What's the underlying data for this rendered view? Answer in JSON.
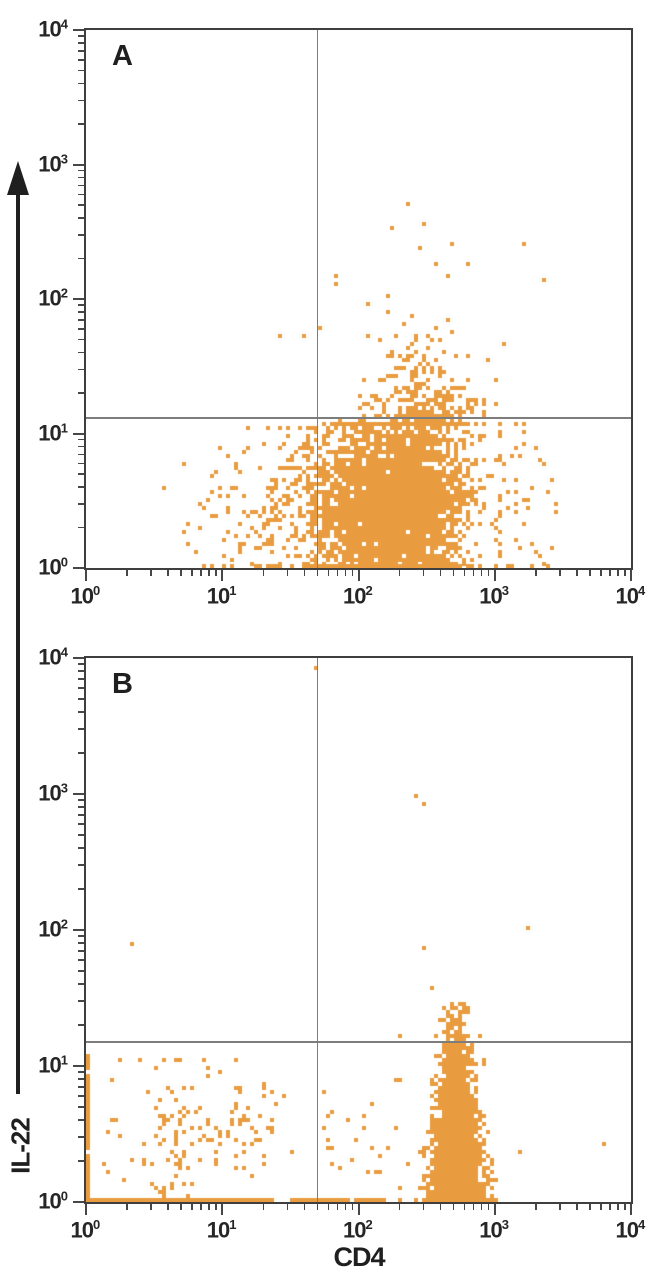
{
  "figure": {
    "background": "#ffffff"
  },
  "colors": {
    "dot": "#E99C3F",
    "frame": "#3f3f3f",
    "gate": "#7d7d7d",
    "tick": "#474747",
    "text": "#262626",
    "arrow": "#1f1f1f"
  },
  "x_axis_title": "CD4",
  "y_axis_title": "IL-22",
  "panels": [
    {
      "label": "A"
    },
    {
      "label": "B"
    }
  ],
  "chart_data": [
    {
      "type": "scatter",
      "panel": "A",
      "xlabel": "CD4",
      "ylabel": "IL-22",
      "xscale": "log",
      "yscale": "log",
      "xlim": [
        1,
        10000
      ],
      "ylim": [
        1,
        10000
      ],
      "x_tick_exponents": [
        0,
        1,
        2,
        3,
        4
      ],
      "y_tick_exponents": [
        0,
        1,
        2,
        3,
        4
      ],
      "log_minor_ticks": true,
      "grid": false,
      "quadrant_gates": {
        "x": 50,
        "y": 13
      },
      "point_color": "#E99C3F",
      "populations": [
        {
          "name": "cd4pos-il22neg-dense-blob",
          "count": 2600,
          "cd4": {
            "dist": "normal",
            "mean": 2.35,
            "sd": 0.22,
            "min": 1.705,
            "max": 3.3,
            "clip": "trunc"
          },
          "il22": {
            "dist": "normal",
            "mean": 0.52,
            "sd": 0.34,
            "min": 0,
            "max": 1.085,
            "clip": "clamp"
          }
        },
        {
          "name": "blob-left-fill",
          "count": 700,
          "cd4": {
            "dist": "uniform",
            "min": 1.705,
            "max": 2.15
          },
          "il22": {
            "dist": "normal",
            "mean": 0.5,
            "sd": 0.33,
            "min": 0,
            "max": 1.085,
            "clip": "clamp"
          }
        },
        {
          "name": "cd4pos-il22pos-scatter",
          "count": 280,
          "cd4": {
            "dist": "normal",
            "mean": 2.44,
            "sd": 0.21,
            "min": 1.72,
            "max": 3.12,
            "clip": "trunc"
          },
          "il22": {
            "dist": "expshift",
            "base": 1.085,
            "scale": 0.22,
            "max": 2.15
          }
        },
        {
          "name": "cd4neg-left-scatter",
          "count": 210,
          "cd4": {
            "dist": "normal",
            "mean": 1.5,
            "sd": 0.34,
            "min": 0.2,
            "max": 1.7,
            "clip": "trunc"
          },
          "il22": {
            "dist": "normal",
            "mean": 0.45,
            "sd": 0.32,
            "min": 0,
            "max": 1.05,
            "clip": "clamp"
          }
        },
        {
          "name": "gate-edge-streak",
          "count": 80,
          "cd4": {
            "dist": "normal",
            "mean": 1.655,
            "sd": 0.035,
            "min": 1.55,
            "max": 1.705,
            "clip": "trunc"
          },
          "il22": {
            "dist": "normal",
            "mean": 0.5,
            "sd": 0.35,
            "min": 0,
            "max": 1.05,
            "clip": "clamp"
          }
        },
        {
          "name": "cd4-bright-right-tail",
          "count": 55,
          "cd4": {
            "dist": "normal",
            "mean": 3.12,
            "sd": 0.17,
            "min": 2.96,
            "max": 3.55,
            "clip": "trunc"
          },
          "il22": {
            "dist": "normal",
            "mean": 0.5,
            "sd": 0.35,
            "min": 0,
            "max": 1.085,
            "clip": "clamp"
          }
        }
      ],
      "outliers": [
        [
          220,
          510
        ],
        [
          170,
          340
        ],
        [
          295,
          365
        ],
        [
          280,
          245
        ],
        [
          370,
          190
        ],
        [
          630,
          190
        ],
        [
          450,
          150
        ],
        [
          2150,
          140
        ],
        [
          67,
          150
        ],
        [
          68,
          130
        ],
        [
          38,
          55
        ],
        [
          50,
          63
        ],
        [
          1600,
          260
        ],
        [
          480,
          265
        ],
        [
          110,
          92
        ],
        [
          26,
          54
        ]
      ]
    },
    {
      "type": "scatter",
      "panel": "B",
      "xlabel": "CD4",
      "ylabel": "IL-22",
      "xscale": "log",
      "yscale": "log",
      "xlim": [
        1,
        10000
      ],
      "ylim": [
        1,
        10000
      ],
      "x_tick_exponents": [
        0,
        1,
        2,
        3,
        4
      ],
      "y_tick_exponents": [
        0,
        1,
        2,
        3,
        4
      ],
      "log_minor_ticks": true,
      "grid": false,
      "quadrant_gates": {
        "x": 50,
        "y": 15
      },
      "point_color": "#E99C3F",
      "populations": [
        {
          "name": "cd4pos-dense-band",
          "count": 2600,
          "taper": 0.5,
          "cd4": {
            "dist": "normal",
            "mean": 2.705,
            "sd": 0.1,
            "min": 2.38,
            "max": 3.0,
            "clip": "trunc"
          },
          "il22": {
            "dist": "halfnormal",
            "sd": 0.55,
            "max": 1.48
          }
        },
        {
          "name": "bottom-axis-line-left",
          "count": 380,
          "cd4": {
            "dist": "uniform",
            "min": 0.02,
            "max": 1.34
          },
          "il22": {
            "dist": "fixed",
            "value": 0,
            "jitter": 0.01
          }
        },
        {
          "name": "bottom-axis-line-mid",
          "count": 80,
          "cd4": {
            "dist": "uniform",
            "min": 1.5,
            "max": 2.12
          },
          "il22": {
            "dist": "fixed",
            "value": 0,
            "jitter": 0.01
          }
        },
        {
          "name": "left-axis-column",
          "count": 120,
          "cd4": {
            "dist": "fixed",
            "value": 0,
            "jitter": 0.012
          },
          "il22": {
            "dist": "uniform",
            "min": 0,
            "max": 1.1
          }
        },
        {
          "name": "cd4neg-lowerleft-scatter",
          "count": 150,
          "cd4": {
            "dist": "normal",
            "mean": 0.85,
            "sd": 0.38,
            "min": 0.06,
            "max": 1.56,
            "clip": "trunc"
          },
          "il22": {
            "dist": "normal",
            "mean": 0.55,
            "sd": 0.28,
            "min": 0.03,
            "max": 1.06,
            "clip": "clamp"
          }
        },
        {
          "name": "mid-sparse",
          "count": 30,
          "cd4": {
            "dist": "uniform",
            "min": 1.72,
            "max": 2.36
          },
          "il22": {
            "dist": "normal",
            "mean": 0.3,
            "sd": 0.3,
            "min": 0,
            "max": 0.95,
            "clip": "clamp"
          }
        }
      ],
      "outliers": [
        [
          48,
          9000
        ],
        [
          250,
          980
        ],
        [
          290,
          860
        ],
        [
          2.1,
          80
        ],
        [
          1750,
          110
        ],
        [
          290,
          75
        ],
        [
          330,
          39
        ],
        [
          200,
          17
        ],
        [
          6000,
          2.8
        ],
        [
          1500,
          2.4
        ],
        [
          120,
          5.5
        ],
        [
          95,
          3
        ],
        [
          160,
          2.5
        ]
      ]
    }
  ]
}
